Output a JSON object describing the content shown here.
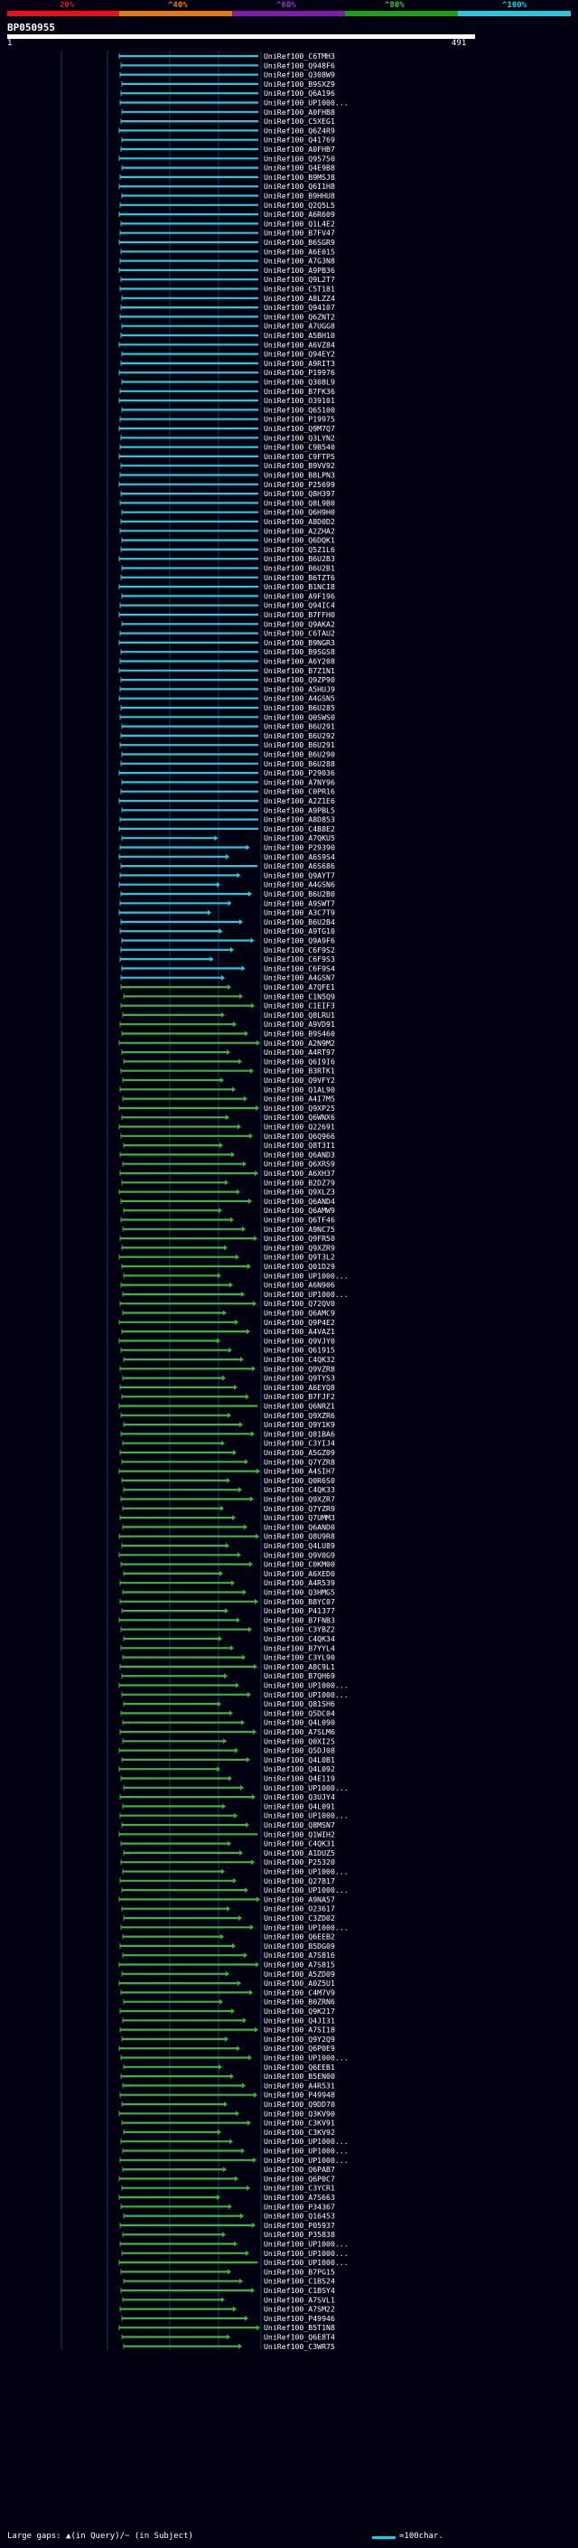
{
  "legend": {
    "labels": [
      "20%",
      "^40%",
      "^60%",
      "^80%",
      "^100%"
    ],
    "colors": [
      "#e8101a",
      "#e67a14",
      "#7c1ea8",
      "#1e9c1e",
      "#28c8dc"
    ]
  },
  "query": {
    "id": "BP050955",
    "start": "1",
    "end": "491"
  },
  "colors": {
    "high": "#28c8dc",
    "mid": "#3cb43c",
    "grid": "#1e3a58"
  },
  "hits": [
    "UniRef100_C6TMH3",
    "UniRef100_Q948F6",
    "UniRef100_Q308W9",
    "UniRef100_B9SXZ9",
    "UniRef100_Q6A196",
    "UniRef100_UP1000...",
    "UniRef100_A0FHB8",
    "UniRef100_C5XEG1",
    "UniRef100_Q6Z4R9",
    "UniRef100_Q41769",
    "UniRef100_A0FHB7",
    "UniRef100_Q95750",
    "UniRef100_Q4E9B8",
    "UniRef100_B9MSJ8",
    "UniRef100_Q6I1H8",
    "UniRef100_B9HHU8",
    "UniRef100_Q2Q5L5",
    "UniRef100_A6R609",
    "UniRef100_Q1L4E2",
    "UniRef100_B7FV47",
    "UniRef100_B6SGR9",
    "UniRef100_A6E015",
    "UniRef100_A7G3N8",
    "UniRef100_A9PB36",
    "UniRef100_Q9L2T7",
    "UniRef100_C5T181",
    "UniRef100_A8LZZ4",
    "UniRef100_Q94107",
    "UniRef100_Q6ZNT2",
    "UniRef100_A7UGG8",
    "UniRef100_A5BH10",
    "UniRef100_A6VZ84",
    "UniRef100_Q94EY2",
    "UniRef100_A9RIT3",
    "UniRef100_P19976",
    "UniRef100_Q308L9",
    "UniRef100_B7FK36",
    "UniRef100_O39101",
    "UniRef100_Q65100",
    "UniRef100_P19975",
    "UniRef100_Q9M7Q7",
    "UniRef100_Q3LYN2",
    "UniRef100_C9B540",
    "UniRef100_C9FTP5",
    "UniRef100_B9VV92",
    "UniRef100_B8LPN3",
    "UniRef100_P25699",
    "UniRef100_Q8H397",
    "UniRef100_Q8L9B0",
    "UniRef100_Q6H9H0",
    "UniRef100_A8D0D2",
    "UniRef100_A2ZHA2",
    "UniRef100_Q6DQK1",
    "UniRef100_Q5Z1L6",
    "UniRef100_B6U2B3",
    "UniRef100_B6U2B1",
    "UniRef100_B6TZT6",
    "UniRef100_B1NCI8",
    "UniRef100_A9F196",
    "UniRef100_Q94IC4",
    "UniRef100_B7FFH0",
    "UniRef100_Q9AKA2",
    "UniRef100_C6TAU2",
    "UniRef100_B9NGR3",
    "UniRef100_B9SGS8",
    "UniRef100_A6Y208",
    "UniRef100_B7Z1N1",
    "UniRef100_Q9ZP90",
    "UniRef100_A5HUJ9",
    "UniRef100_A4GSN5",
    "UniRef100_B6U285",
    "UniRef100_Q0SWS0",
    "UniRef100_B6U291",
    "UniRef100_B6U292",
    "UniRef100_B6U291",
    "UniRef100_B6U290",
    "UniRef100_B6U288",
    "UniRef100_P29036",
    "UniRef100_A7NY96",
    "UniRef100_C0PR16",
    "UniRef100_A2Z1E6",
    "UniRef100_A9PBL5",
    "UniRef100_A8D853",
    "UniRef100_C4B8E2",
    "UniRef100_A7QKU5",
    "UniRef100_P29390",
    "UniRef100_A6S9S4",
    "UniRef100_A6S686",
    "UniRef100_Q9AYT7",
    "UniRef100_A4GSN6",
    "UniRef100_B6U2B0",
    "UniRef100_A9SWT7",
    "UniRef100_A3C7T9",
    "UniRef100_B6U2B4",
    "UniRef100_A9TG10",
    "UniRef100_Q9A9F6",
    "UniRef100_C6F9S2",
    "UniRef100_C6F9S3",
    "UniRef100_C6F9S4",
    "UniRef100_A4GSN7",
    "UniRef100_A7QFE1",
    "UniRef100_C1N5Q9",
    "UniRef100_C1EIF3",
    "UniRef100_Q8LRU1",
    "UniRef100_A9VD91",
    "UniRef100_B9S460",
    "UniRef100_A2N9M2",
    "UniRef100_A4RT97",
    "UniRef100_Q6I9I6",
    "UniRef100_B3RTK1",
    "UniRef100_Q9VFY2",
    "UniRef100_Q1AL90",
    "UniRef100_A4I7M5",
    "UniRef100_Q9XP25",
    "UniRef100_Q6WNX6",
    "UniRef100_Q22691",
    "UniRef100_Q6Q966",
    "UniRef100_Q8T3I1",
    "UniRef100_Q6AND3",
    "UniRef100_Q6XRS9",
    "UniRef100_A6XH37",
    "UniRef100_B2DZ79",
    "UniRef100_Q9XLZ3",
    "UniRef100_Q6AND4",
    "UniRef100_Q6AMW9",
    "UniRef100_Q6TF46",
    "UniRef100_A9NC75",
    "UniRef100_Q9FR50",
    "UniRef100_Q9XZR9",
    "UniRef100_Q9T3L2",
    "UniRef100_Q01D29",
    "UniRef100_UP1000...",
    "UniRef100_A6N906",
    "UniRef100_UP1000...",
    "UniRef100_Q72QV0",
    "UniRef100_Q6AMC9",
    "UniRef100_Q9P4E2",
    "UniRef100_A4VAZ1",
    "UniRef100_Q9VJY0",
    "UniRef100_Q61915",
    "UniRef100_C4QK32",
    "UniRef100_Q9VZR8",
    "UniRef100_Q9TYS3",
    "UniRef100_A6EYQ8",
    "UniRef100_B7FJF2",
    "UniRef100_Q6NRZ1",
    "UniRef100_Q9XZR6",
    "UniRef100_Q9Y1K9",
    "UniRef100_Q81BA6",
    "UniRef100_C3YIJ4",
    "UniRef100_A5GZ09",
    "UniRef100_Q7YZR8",
    "UniRef100_A4SIH7",
    "UniRef100_Q0R6S0",
    "UniRef100_C4QK33",
    "UniRef100_Q9XZR7",
    "UniRef100_Q7YZR9",
    "UniRef100_Q7UMM3",
    "UniRef100_Q6AND0",
    "UniRef100_Q8U9R8",
    "UniRef100_Q4LU89",
    "UniRef100_Q9V0G9",
    "UniRef100_C0KM00",
    "UniRef100_A6XED0",
    "UniRef100_A4R539",
    "UniRef100_Q3HMG5",
    "UniRef100_B8YC07",
    "UniRef100_P41377",
    "UniRef100_B7FNB3",
    "UniRef100_C3YBZ2",
    "UniRef100_C4QK34",
    "UniRef100_B7YYL4",
    "UniRef100_C3YL90",
    "UniRef100_A8C9L1",
    "UniRef100_B7QH69",
    "UniRef100_UP1000...",
    "UniRef100_UP1000...",
    "UniRef100_Q81SH6",
    "UniRef100_Q5DC04",
    "UniRef100_Q4L090",
    "UniRef100_A7SLM6",
    "UniRef100_Q0XI25",
    "UniRef100_Q5DJ08",
    "UniRef100_Q4L0B1",
    "UniRef100_Q4L092",
    "UniRef100_Q4E119",
    "UniRef100_UP1000...",
    "UniRef100_Q3UJY4",
    "UniRef100_Q4L091",
    "UniRef100_UP1000...",
    "UniRef100_Q8MSN7",
    "UniRef100_Q1WIH2",
    "UniRef100_C4QK31",
    "UniRef100_A1DUZ5",
    "UniRef100_P25320",
    "UniRef100_UP1000...",
    "UniRef100_Q27817",
    "UniRef100_UP1000...",
    "UniRef100_A9NA57",
    "UniRef100_O23617",
    "UniRef100_C3ZD02",
    "UniRef100_UP1000...",
    "UniRef100_Q6EEB2",
    "UniRef100_B5DG09",
    "UniRef100_A7S816",
    "UniRef100_A7S815",
    "UniRef100_A5ZD09",
    "UniRef100_A0Z5U1",
    "UniRef100_C4M7V9",
    "UniRef100_B0ZRN6",
    "UniRef100_Q9K217",
    "UniRef100_Q4JI31",
    "UniRef100_A7SI18",
    "UniRef100_Q9Y2Q9",
    "UniRef100_Q6P0E9",
    "UniRef100_UP1000...",
    "UniRef100_Q6EEB1",
    "UniRef100_B5EN00",
    "UniRef100_A4R531",
    "UniRef100_P49948",
    "UniRef100_Q9DD70",
    "UniRef100_Q3KV90",
    "UniRef100_C3KV91",
    "UniRef100_C3KV92",
    "UniRef100_UP1000...",
    "UniRef100_UP1000...",
    "UniRef100_UP1000...",
    "UniRef100_Q6PAB7",
    "UniRef100_Q6P0C7",
    "UniRef100_C3YCR1",
    "UniRef100_A7S663",
    "UniRef100_P34367",
    "UniRef100_Q16453",
    "UniRef100_P05937",
    "UniRef100_P35838",
    "UniRef100_UP1000...",
    "UniRef100_UP1000...",
    "UniRef100_UP1000...",
    "UniRef100_B7PG15",
    "UniRef100_C1BS24",
    "UniRef100_C1BSY4",
    "UniRef100_A7SVL1",
    "UniRef100_A7SM22",
    "UniRef100_P49946",
    "UniRef100_B5T1N8",
    "UniRef100_Q6E8T4",
    "UniRef100_C3WR75"
  ],
  "footer": {
    "gap_note": "Large gaps: ▲(in Query)/~ (in Subject)",
    "scale_label": "=100char."
  }
}
